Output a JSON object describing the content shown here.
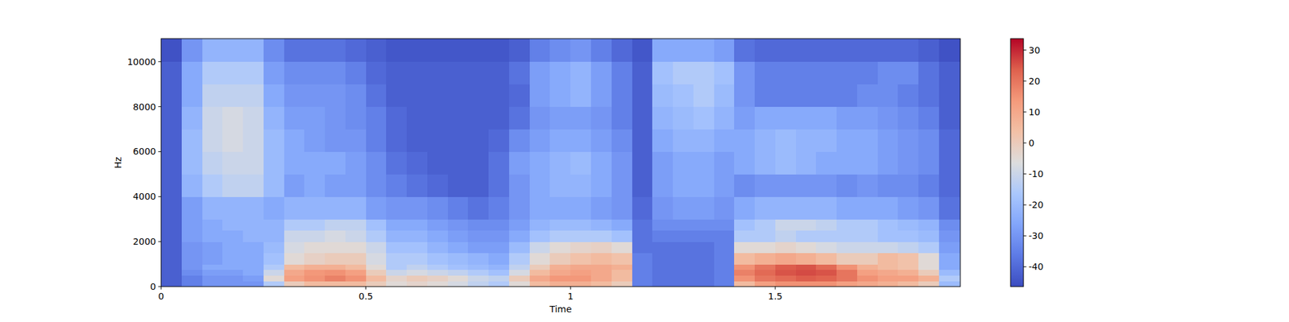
{
  "chart_data": {
    "type": "heatmap",
    "x_label": "Time",
    "y_label": "Hz",
    "xlim": [
      0,
      1.952
    ],
    "xticks": [
      0,
      0.5,
      1,
      1.5
    ],
    "ylim": [
      0,
      11025
    ],
    "yticks": [
      0,
      2000,
      4000,
      6000,
      8000,
      10000
    ],
    "x_bins": [
      0,
      0.05,
      0.1,
      0.15,
      0.2,
      0.25,
      0.3,
      0.35,
      0.4,
      0.45,
      0.5,
      0.55,
      0.6,
      0.65,
      0.7,
      0.75,
      0.8,
      0.85,
      0.9,
      0.95,
      1,
      1.05,
      1.1,
      1.15,
      1.2,
      1.25,
      1.3,
      1.35,
      1.4,
      1.45,
      1.5,
      1.55,
      1.6,
      1.65,
      1.7,
      1.75,
      1.8,
      1.85,
      1.9,
      1.952
    ],
    "y_bins": [
      0,
      250,
      500,
      750,
      1000,
      1500,
      2000,
      2500,
      3000,
      4000,
      5000,
      6000,
      7000,
      8000,
      9000,
      10000,
      11025
    ],
    "values": [
      [
        -42,
        -35,
        -30,
        -30,
        -30,
        -15,
        0,
        5,
        5,
        5,
        0,
        -5,
        -3,
        -5,
        -8,
        -12,
        -15,
        -5,
        5,
        8,
        8,
        5,
        0,
        -35,
        -38,
        -38,
        -38,
        -35,
        5,
        12,
        15,
        15,
        15,
        12,
        10,
        8,
        5,
        0,
        -20
      ],
      [
        -42,
        -35,
        -30,
        -30,
        -28,
        -5,
        12,
        15,
        18,
        15,
        5,
        -3,
        0,
        -2,
        -5,
        -10,
        -12,
        0,
        10,
        14,
        14,
        10,
        5,
        -35,
        -38,
        -38,
        -38,
        -35,
        15,
        20,
        22,
        24,
        23,
        20,
        15,
        12,
        12,
        8,
        -15
      ],
      [
        -42,
        -32,
        -28,
        -28,
        -25,
        -10,
        10,
        14,
        15,
        12,
        0,
        -10,
        -8,
        -10,
        -12,
        -15,
        -18,
        -8,
        5,
        10,
        12,
        10,
        5,
        -35,
        -38,
        -38,
        -38,
        -35,
        18,
        22,
        25,
        26,
        25,
        20,
        12,
        10,
        8,
        0,
        -20
      ],
      [
        -42,
        -30,
        -25,
        -25,
        -25,
        -15,
        5,
        8,
        8,
        5,
        -5,
        -15,
        -12,
        -15,
        -18,
        -20,
        -22,
        -12,
        0,
        8,
        10,
        10,
        8,
        -35,
        -38,
        -38,
        -38,
        -35,
        15,
        20,
        24,
        25,
        22,
        15,
        8,
        5,
        3,
        -5,
        -25
      ],
      [
        -42,
        -30,
        -28,
        -25,
        -25,
        -18,
        -5,
        -2,
        0,
        0,
        -8,
        -15,
        -15,
        -18,
        -20,
        -22,
        -25,
        -15,
        -5,
        0,
        3,
        5,
        3,
        -35,
        -38,
        -38,
        -38,
        -35,
        5,
        8,
        10,
        8,
        5,
        0,
        0,
        5,
        3,
        -5,
        -25
      ],
      [
        -42,
        -30,
        -28,
        -25,
        -25,
        -20,
        -8,
        -5,
        -5,
        -5,
        -10,
        -18,
        -18,
        -22,
        -25,
        -28,
        -28,
        -20,
        -10,
        -5,
        -3,
        -2,
        -5,
        -38,
        -38,
        -38,
        -38,
        -35,
        -5,
        -5,
        -3,
        -5,
        -8,
        -10,
        -10,
        -10,
        -12,
        -15,
        -28
      ],
      [
        -42,
        -28,
        -25,
        -25,
        -22,
        -22,
        -10,
        -10,
        -8,
        -10,
        -15,
        -22,
        -22,
        -25,
        -28,
        -30,
        -30,
        -25,
        -18,
        -15,
        -15,
        -15,
        -18,
        -38,
        -35,
        -35,
        -35,
        -35,
        -15,
        -15,
        -12,
        -15,
        -15,
        -15,
        -15,
        -18,
        -18,
        -20,
        -30
      ],
      [
        -42,
        -28,
        -25,
        -22,
        -22,
        -22,
        -15,
        -15,
        -12,
        -12,
        -18,
        -25,
        -25,
        -28,
        -30,
        -32,
        -32,
        -28,
        -22,
        -20,
        -20,
        -22,
        -25,
        -38,
        -32,
        -32,
        -32,
        -32,
        -18,
        -15,
        -10,
        -10,
        -12,
        -15,
        -15,
        -18,
        -20,
        -22,
        -32
      ],
      [
        -42,
        -28,
        -22,
        -22,
        -22,
        -25,
        -22,
        -22,
        -22,
        -22,
        -28,
        -30,
        -30,
        -32,
        -35,
        -38,
        -35,
        -30,
        -25,
        -25,
        -25,
        -28,
        -30,
        -40,
        -30,
        -28,
        -28,
        -30,
        -25,
        -22,
        -22,
        -22,
        -22,
        -25,
        -25,
        -25,
        -28,
        -30,
        -38
      ],
      [
        -42,
        -22,
        -15,
        -12,
        -12,
        -20,
        -28,
        -25,
        -28,
        -28,
        -32,
        -35,
        -38,
        -40,
        -42,
        -42,
        -38,
        -30,
        -25,
        -22,
        -22,
        -25,
        -30,
        -42,
        -28,
        -25,
        -25,
        -28,
        -32,
        -30,
        -30,
        -30,
        -30,
        -32,
        -30,
        -32,
        -32,
        -35,
        -40
      ],
      [
        -42,
        -20,
        -12,
        -10,
        -10,
        -20,
        -25,
        -25,
        -25,
        -28,
        -32,
        -38,
        -40,
        -42,
        -42,
        -42,
        -38,
        -28,
        -25,
        -22,
        -20,
        -25,
        -30,
        -42,
        -28,
        -25,
        -25,
        -28,
        -25,
        -22,
        -20,
        -22,
        -25,
        -25,
        -25,
        -28,
        -30,
        -32,
        -40
      ],
      [
        -42,
        -20,
        -10,
        -8,
        -10,
        -20,
        -25,
        -28,
        -30,
        -30,
        -35,
        -40,
        -42,
        -42,
        -42,
        -42,
        -40,
        -32,
        -28,
        -25,
        -25,
        -28,
        -32,
        -42,
        -25,
        -22,
        -22,
        -25,
        -25,
        -22,
        -20,
        -22,
        -22,
        -25,
        -25,
        -28,
        -30,
        -32,
        -40
      ],
      [
        -42,
        -22,
        -10,
        -8,
        -10,
        -22,
        -28,
        -28,
        -30,
        -32,
        -35,
        -40,
        -42,
        -42,
        -42,
        -42,
        -42,
        -38,
        -30,
        -28,
        -28,
        -30,
        -35,
        -42,
        -22,
        -20,
        -18,
        -22,
        -28,
        -25,
        -25,
        -25,
        -25,
        -28,
        -28,
        -30,
        -32,
        -35,
        -42
      ],
      [
        -42,
        -25,
        -12,
        -12,
        -12,
        -25,
        -30,
        -30,
        -30,
        -32,
        -38,
        -42,
        -42,
        -42,
        -42,
        -42,
        -42,
        -40,
        -28,
        -25,
        -22,
        -28,
        -35,
        -42,
        -20,
        -18,
        -15,
        -20,
        -30,
        -35,
        -35,
        -35,
        -35,
        -35,
        -32,
        -32,
        -35,
        -38,
        -42
      ],
      [
        -42,
        -25,
        -15,
        -15,
        -15,
        -28,
        -32,
        -32,
        -32,
        -35,
        -40,
        -42,
        -42,
        -42,
        -42,
        -42,
        -42,
        -38,
        -28,
        -25,
        -22,
        -28,
        -35,
        -42,
        -18,
        -15,
        -15,
        -18,
        -30,
        -35,
        -35,
        -35,
        -35,
        -35,
        -35,
        -32,
        -32,
        -38,
        -42
      ],
      [
        -45,
        -30,
        -22,
        -22,
        -22,
        -32,
        -38,
        -38,
        -38,
        -40,
        -42,
        -44,
        -44,
        -44,
        -44,
        -44,
        -44,
        -42,
        -35,
        -32,
        -30,
        -35,
        -40,
        -44,
        -25,
        -25,
        -25,
        -28,
        -38,
        -40,
        -40,
        -40,
        -40,
        -40,
        -40,
        -40,
        -40,
        -42,
        -45
      ]
    ],
    "colorbar_range": [
      -46.4,
      33.7
    ],
    "colorbar_ticks": [
      -40,
      -30,
      -20,
      -10,
      0,
      10,
      20,
      30
    ]
  }
}
